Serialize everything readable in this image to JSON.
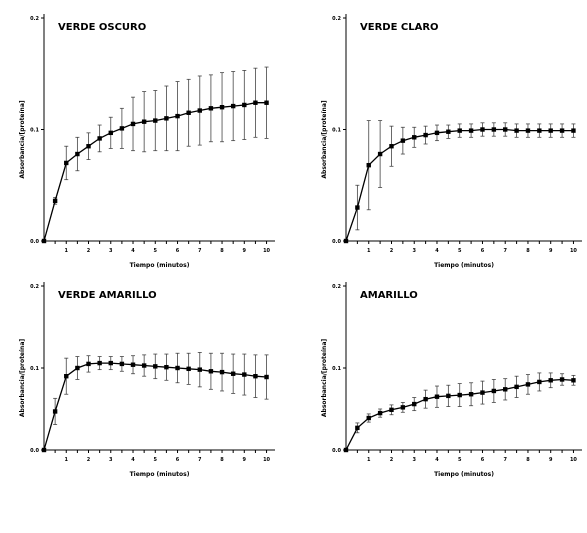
{
  "chart_data": [
    {
      "type": "line",
      "title": "VERDE OSCURO",
      "xlabel": "Tiempo (minutos)",
      "ylabel": "Absorbancia/[proteína]",
      "xlim": [
        0,
        10.2
      ],
      "ylim": [
        0,
        0.2
      ],
      "yticks": [
        "0.0",
        "0.1",
        "0.2"
      ],
      "xticks": [
        "1",
        "2",
        "3",
        "4",
        "5",
        "6",
        "7",
        "8",
        "9",
        "10"
      ],
      "x": [
        0,
        0.5,
        1,
        1.5,
        2,
        2.5,
        3,
        3.5,
        4,
        4.5,
        5,
        5.5,
        6,
        6.5,
        7,
        7.5,
        8,
        8.5,
        9,
        9.5,
        10
      ],
      "y": [
        0,
        0.036,
        0.07,
        0.078,
        0.085,
        0.092,
        0.097,
        0.101,
        0.105,
        0.107,
        0.108,
        0.11,
        0.112,
        0.115,
        0.117,
        0.119,
        0.12,
        0.121,
        0.122,
        0.124,
        0.124
      ],
      "err": [
        0,
        0.003,
        0.015,
        0.015,
        0.012,
        0.012,
        0.014,
        0.018,
        0.024,
        0.027,
        0.027,
        0.029,
        0.031,
        0.03,
        0.031,
        0.03,
        0.031,
        0.031,
        0.031,
        0.031,
        0.032
      ]
    },
    {
      "type": "line",
      "title": "VERDE CLARO",
      "xlabel": "Tiempo (minutos)",
      "ylabel": "Absorbancia/[proteína]",
      "xlim": [
        0,
        10.2
      ],
      "ylim": [
        0,
        0.2
      ],
      "yticks": [
        "0.0",
        "0.1",
        "0.2"
      ],
      "xticks": [
        "1",
        "2",
        "3",
        "4",
        "5",
        "6",
        "7",
        "8",
        "9",
        "10"
      ],
      "x": [
        0,
        0.5,
        1,
        1.5,
        2,
        2.5,
        3,
        3.5,
        4,
        4.5,
        5,
        5.5,
        6,
        6.5,
        7,
        7.5,
        8,
        8.5,
        9,
        9.5,
        10
      ],
      "y": [
        0,
        0.03,
        0.068,
        0.078,
        0.085,
        0.09,
        0.093,
        0.095,
        0.097,
        0.098,
        0.099,
        0.099,
        0.1,
        0.1,
        0.1,
        0.099,
        0.099,
        0.099,
        0.099,
        0.099,
        0.099
      ],
      "err": [
        0,
        0.02,
        0.04,
        0.03,
        0.018,
        0.012,
        0.009,
        0.008,
        0.007,
        0.006,
        0.006,
        0.006,
        0.006,
        0.006,
        0.006,
        0.006,
        0.006,
        0.006,
        0.006,
        0.006,
        0.006
      ]
    },
    {
      "type": "line",
      "title": "VERDE AMARILLO",
      "xlabel": "Tiempo (minutos)",
      "ylabel": "Absorbancia/[proteína]",
      "xlim": [
        0,
        10.2
      ],
      "ylim": [
        0,
        0.2
      ],
      "yticks": [
        "0.0",
        "0.1",
        "0.2"
      ],
      "xticks": [
        "1",
        "2",
        "3",
        "4",
        "5",
        "6",
        "7",
        "8",
        "9",
        "10"
      ],
      "x": [
        0,
        0.5,
        1,
        1.5,
        2,
        2.5,
        3,
        3.5,
        4,
        4.5,
        5,
        5.5,
        6,
        6.5,
        7,
        7.5,
        8,
        8.5,
        9,
        9.5,
        10
      ],
      "y": [
        0,
        0.047,
        0.09,
        0.1,
        0.105,
        0.106,
        0.106,
        0.105,
        0.104,
        0.103,
        0.102,
        0.101,
        0.1,
        0.099,
        0.098,
        0.096,
        0.095,
        0.093,
        0.092,
        0.09,
        0.089
      ],
      "err": [
        0,
        0.016,
        0.022,
        0.014,
        0.01,
        0.008,
        0.008,
        0.009,
        0.011,
        0.013,
        0.015,
        0.016,
        0.018,
        0.019,
        0.021,
        0.022,
        0.023,
        0.024,
        0.025,
        0.026,
        0.027
      ]
    },
    {
      "type": "line",
      "title": "AMARILLO",
      "xlabel": "Tiempo (minutos)",
      "ylabel": "Absorbancia/[proteína]",
      "xlim": [
        0,
        10.2
      ],
      "ylim": [
        0,
        0.2
      ],
      "yticks": [
        "0.0",
        "0.1",
        "0.2"
      ],
      "xticks": [
        "1",
        "2",
        "3",
        "4",
        "5",
        "6",
        "7",
        "8",
        "9",
        "10"
      ],
      "x": [
        0,
        0.5,
        1,
        1.5,
        2,
        2.5,
        3,
        3.5,
        4,
        4.5,
        5,
        5.5,
        6,
        6.5,
        7,
        7.5,
        8,
        8.5,
        9,
        9.5,
        10
      ],
      "y": [
        0,
        0.027,
        0.039,
        0.045,
        0.049,
        0.052,
        0.056,
        0.062,
        0.065,
        0.066,
        0.067,
        0.068,
        0.07,
        0.072,
        0.074,
        0.077,
        0.08,
        0.083,
        0.085,
        0.086,
        0.085
      ],
      "err": [
        0,
        0.006,
        0.005,
        0.005,
        0.006,
        0.006,
        0.008,
        0.011,
        0.013,
        0.013,
        0.014,
        0.014,
        0.014,
        0.014,
        0.013,
        0.013,
        0.012,
        0.011,
        0.009,
        0.007,
        0.006
      ]
    }
  ]
}
